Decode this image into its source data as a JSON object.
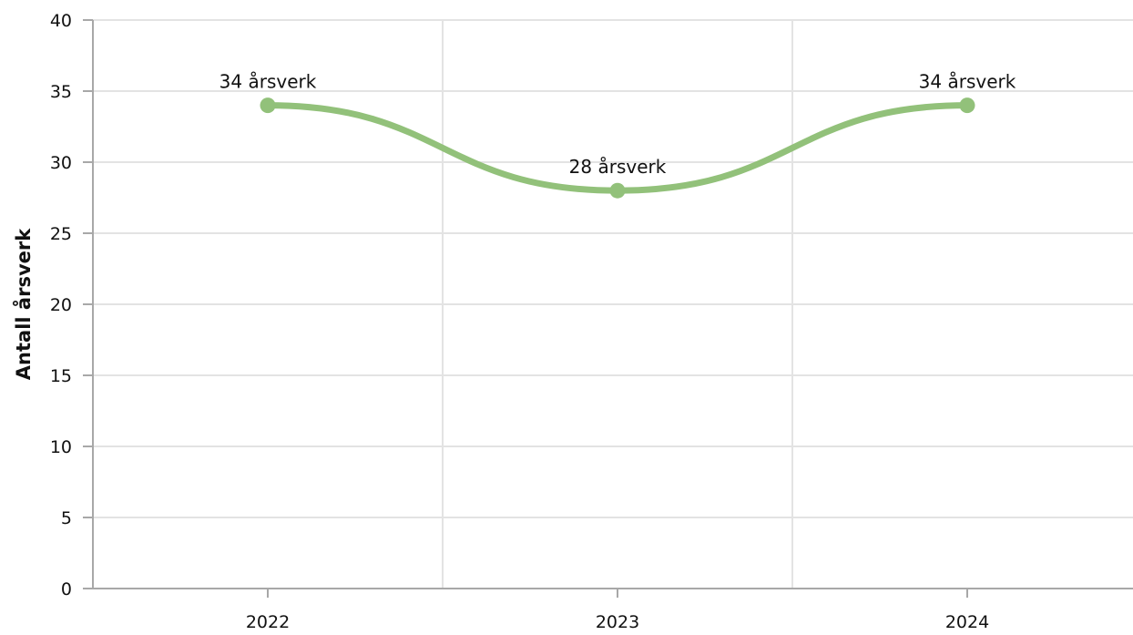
{
  "chart_data": {
    "type": "line",
    "ylabel": "Antall årsverk",
    "xlabel": "",
    "categories": [
      "2022",
      "2023",
      "2024"
    ],
    "series": [
      {
        "values": [
          34,
          28,
          34
        ],
        "data_labels": [
          "34 årsverk",
          "28 årsverk",
          "34 årsverk"
        ],
        "color": "#92c17a"
      }
    ],
    "ylim": [
      0,
      40
    ],
    "y_ticks": [
      0,
      5,
      10,
      15,
      20,
      25,
      30,
      35,
      40
    ],
    "grid": true,
    "smooth": true,
    "legend": "none"
  }
}
